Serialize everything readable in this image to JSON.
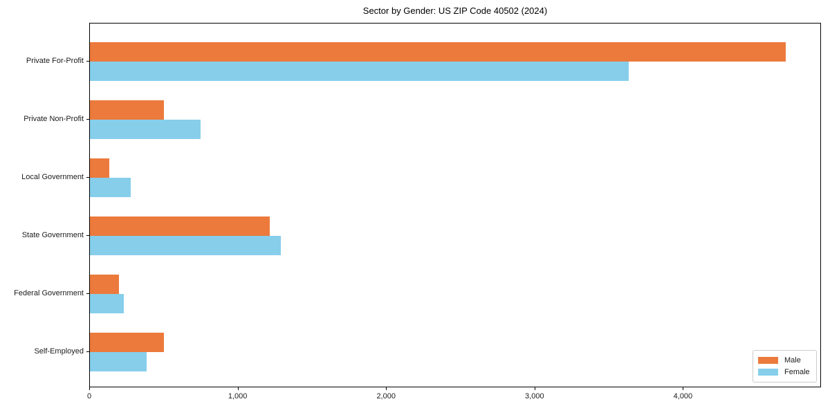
{
  "title": "Sector by Gender: US ZIP Code 40502 (2024)",
  "colors": {
    "male": "#ec7a3c",
    "female": "#87ceeb",
    "axis": "#000000",
    "legend_border": "#cccccc",
    "background": "#ffffff"
  },
  "chart_data": {
    "type": "bar",
    "orientation": "horizontal",
    "title": "Sector by Gender: US ZIP Code 40502 (2024)",
    "categories": [
      "Private For-Profit",
      "Private Non-Profit",
      "Local Government",
      "State Government",
      "Federal Government",
      "Self-Employed"
    ],
    "series": [
      {
        "name": "Male",
        "color": "#ec7a3c",
        "values": [
          4690,
          500,
          130,
          1210,
          198,
          500
        ]
      },
      {
        "name": "Female",
        "color": "#87ceeb",
        "values": [
          3630,
          745,
          275,
          1285,
          227,
          383
        ]
      }
    ],
    "xlabel": "",
    "ylabel": "",
    "xlim": [
      0,
      4930
    ],
    "xticks": [
      0,
      1000,
      2000,
      3000,
      4000
    ],
    "xtick_labels": [
      "0",
      "1,000",
      "2,000",
      "3,000",
      "4,000"
    ],
    "grid": false,
    "legend_position": "lower right"
  }
}
